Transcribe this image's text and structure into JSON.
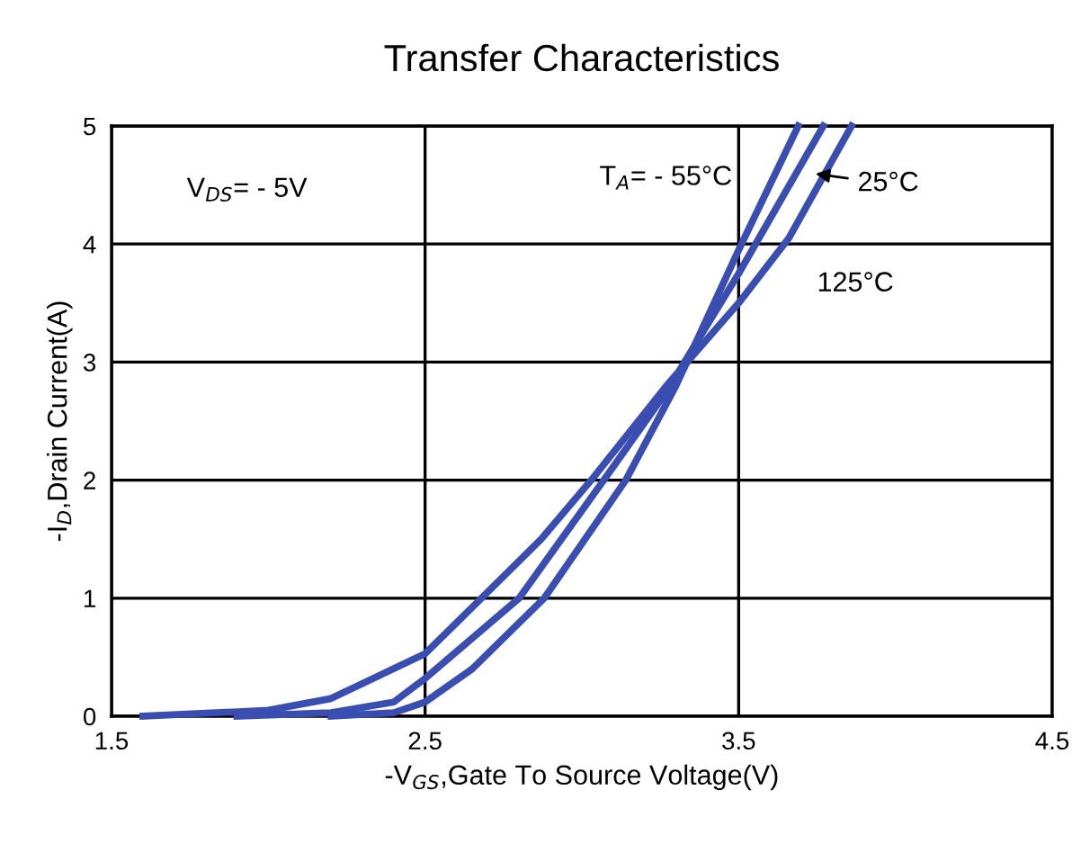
{
  "chart_data": {
    "type": "line",
    "title": "Transfer Characteristics",
    "xlabel": "-V$_{GS}$,Gate To Source Voltage(V)",
    "ylabel": "-I$_{D}$,Drain Current(A)",
    "xlim": [
      1.5,
      4.5
    ],
    "xticks": [
      1.5,
      2.5,
      3.5,
      4.5
    ],
    "ylim": [
      0,
      5
    ],
    "yticks": [
      0,
      1,
      2,
      3,
      4,
      5
    ],
    "grid": true,
    "marker": "none",
    "line_style": "solid",
    "series": [
      {
        "color": "#3a4db0",
        "x": [
          1.6,
          2.0,
          2.2,
          2.5,
          2.68,
          2.87,
          3.03,
          3.27,
          3.5,
          3.66,
          3.86
        ],
        "values": [
          0,
          0.05,
          0.15,
          0.53,
          1.0,
          1.5,
          2.0,
          2.8,
          3.5,
          4.05,
          5.0
        ]
      },
      {
        "color": "#3a4db0",
        "x": [
          1.9,
          2.2,
          2.4,
          2.5,
          2.8,
          3.07,
          3.27,
          3.5,
          3.77
        ],
        "values": [
          0,
          0.03,
          0.12,
          0.32,
          1.0,
          2.0,
          2.75,
          3.75,
          5.0
        ]
      },
      {
        "color": "#3a4db0",
        "x": [
          2.2,
          2.4,
          2.5,
          2.65,
          2.88,
          3.14,
          3.3,
          3.5,
          3.69
        ],
        "values": [
          0,
          0.03,
          0.12,
          0.4,
          1.0,
          2.0,
          2.8,
          3.95,
          5.0
        ]
      }
    ],
    "annotations": [
      "V$_{DS}$= - 5V",
      "T$_{A}$= - 55°C",
      "25°C",
      "125°C"
    ]
  }
}
